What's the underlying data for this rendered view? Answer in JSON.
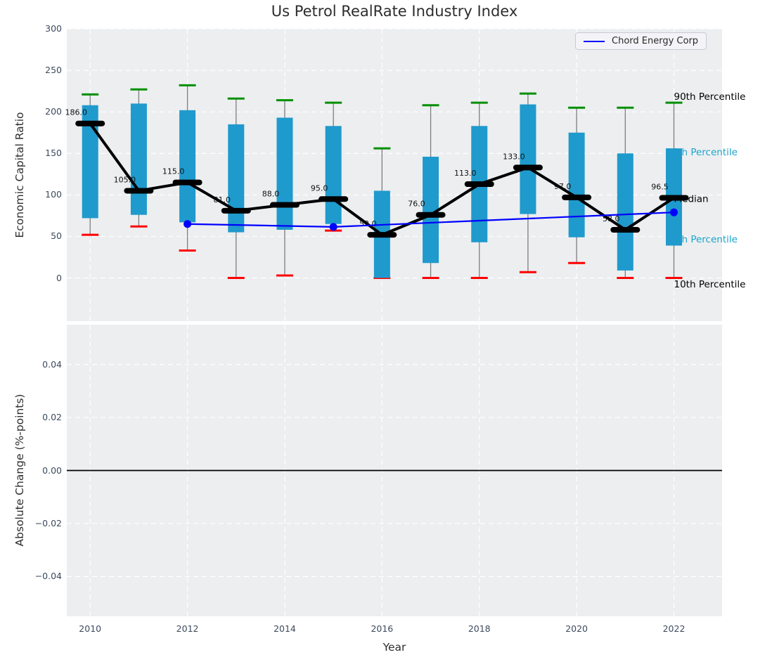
{
  "title": "Us Petrol RealRate Industry Index",
  "legend": {
    "label": "Chord Energy Corp"
  },
  "colors": {
    "figure_bg": "#ffffff",
    "axes_bg": "#eceef0",
    "grid": "#ffffff",
    "box": "#1f9acd",
    "whisker": "#7e7e7e",
    "cap_high": "#008f00",
    "cap_low": "#ff0000",
    "median": "#000000",
    "company_line": "#0000ff",
    "tick_label": "#3c4a5e",
    "axis_label": "#2e2e2e",
    "title": "#2d2d2d",
    "annotation_cyan": "#1ba4cc",
    "annotation_black": "#000000",
    "zero_line": "#000000"
  },
  "chart_data": [
    {
      "type": "boxplot",
      "title": "Us Petrol RealRate Industry Index",
      "ylabel": "Economic Capital Ratio",
      "xlabel": "",
      "xlim": [
        2009.52,
        2022.99
      ],
      "ylim": [
        -52,
        300
      ],
      "grid": true,
      "legend_position": "upper right",
      "ytick_values": [
        300,
        250,
        200,
        150,
        100,
        50,
        0
      ],
      "ytick_labels": [
        "300",
        "250",
        "200",
        "150",
        "100",
        "50",
        "0"
      ],
      "xtick_values": [
        2010,
        2012,
        2014,
        2016,
        2018,
        2020,
        2022
      ],
      "xtick_labels": [],
      "years": [
        2010,
        2011,
        2012,
        2013,
        2014,
        2015,
        2016,
        2017,
        2018,
        2019,
        2020,
        2021,
        2022
      ],
      "percentiles": {
        "p90": [
          221,
          227,
          232,
          216,
          214,
          211,
          156,
          208,
          211,
          222,
          205,
          205,
          211
        ],
        "p75": [
          208,
          210,
          202,
          185,
          193,
          183,
          105,
          146,
          183,
          209,
          175,
          150,
          156
        ],
        "median": [
          186,
          105,
          115,
          81,
          88,
          95,
          52,
          76,
          113,
          133,
          97,
          58,
          96.5
        ],
        "p25": [
          72,
          76,
          67,
          55,
          58,
          65,
          0,
          18,
          43,
          77,
          49,
          9,
          39
        ],
        "p10": [
          52,
          62,
          33,
          0,
          3,
          57,
          0,
          0,
          0,
          7,
          18,
          0,
          0
        ]
      },
      "median_labels": [
        "186.0",
        "105.0",
        "115.0",
        "81.0",
        "88.0",
        "95.0",
        "52.0",
        "76.0",
        "113.0",
        "133.0",
        "97.0",
        "58.0",
        "96.5"
      ],
      "company_series": {
        "name": "Chord Energy Corp",
        "x": [
          2012,
          2015,
          2022
        ],
        "y": [
          65,
          61.5,
          79
        ]
      },
      "annotations": [
        {
          "label": "90th Percentile",
          "tone": "black",
          "y": 218,
          "dx": 0
        },
        {
          "label": "75th Percentile",
          "tone": "cyan",
          "y": 151,
          "dx": -11.5
        },
        {
          "label": "Median",
          "tone": "black",
          "y": 95,
          "dx": 0
        },
        {
          "label": "25th Percentile",
          "tone": "cyan",
          "y": 46,
          "dx": -11.5
        },
        {
          "label": "10th Percentile",
          "tone": "black",
          "y": -8,
          "dx": 0
        }
      ]
    },
    {
      "type": "line",
      "title": "",
      "ylabel": "Absolute Change (%-points)",
      "xlabel": "Year",
      "xlim": [
        2009.52,
        2022.99
      ],
      "ylim": [
        -0.055,
        0.055
      ],
      "grid": true,
      "ytick_values": [
        0.04,
        0.02,
        0,
        -0.02,
        -0.04
      ],
      "ytick_labels": [
        "0.04",
        "0.02",
        "0.00",
        "−0.02",
        "−0.04"
      ],
      "xtick_values": [
        2010,
        2012,
        2014,
        2016,
        2018,
        2020,
        2022
      ],
      "xtick_labels": [
        "2010",
        "2012",
        "2014",
        "2016",
        "2018",
        "2020",
        "2022"
      ],
      "zero_line": 0,
      "series": []
    }
  ]
}
